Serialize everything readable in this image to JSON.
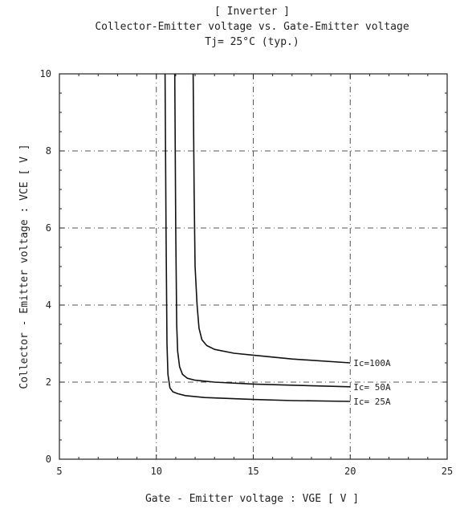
{
  "chart_data": {
    "type": "line",
    "title": "[ Inverter ]",
    "subtitle": "Collector-Emitter voltage  vs. Gate-Emitter voltage",
    "condition": "Tj= 25°C      (typ.)",
    "xlabel": "Gate - Emitter voltage  :  VGE  [ V ]",
    "ylabel": "Collector - Emitter voltage  :  VCE  [ V ]",
    "xlim": [
      5,
      25
    ],
    "ylim": [
      0,
      10
    ],
    "xticks": [
      "5",
      "10",
      "15",
      "20",
      "25"
    ],
    "yticks": [
      "0",
      "2",
      "4",
      "6",
      "8",
      "10"
    ],
    "grid": true,
    "legend": "none (inline curve labels)",
    "series": [
      {
        "name": "Ic=100A",
        "x": [
          11.9,
          11.95,
          12.0,
          12.1,
          12.2,
          12.35,
          12.6,
          13.0,
          14.0,
          15.0,
          17.0,
          20.0
        ],
        "y": [
          10.0,
          7.0,
          5.0,
          4.0,
          3.4,
          3.1,
          2.95,
          2.85,
          2.75,
          2.7,
          2.6,
          2.5
        ]
      },
      {
        "name": "Ic= 50A",
        "x": [
          10.95,
          11.0,
          11.05,
          11.1,
          11.2,
          11.35,
          11.6,
          12.0,
          13.0,
          15.0,
          17.0,
          20.0
        ],
        "y": [
          10.0,
          6.0,
          3.5,
          2.8,
          2.4,
          2.2,
          2.1,
          2.05,
          2.0,
          1.95,
          1.92,
          1.88
        ]
      },
      {
        "name": "Ic= 25A",
        "x": [
          10.45,
          10.5,
          10.55,
          10.6,
          10.7,
          10.85,
          11.1,
          11.5,
          12.5,
          15.0,
          17.0,
          20.0
        ],
        "y": [
          10.0,
          6.0,
          3.0,
          2.2,
          1.85,
          1.75,
          1.7,
          1.65,
          1.6,
          1.55,
          1.52,
          1.5
        ]
      }
    ]
  }
}
